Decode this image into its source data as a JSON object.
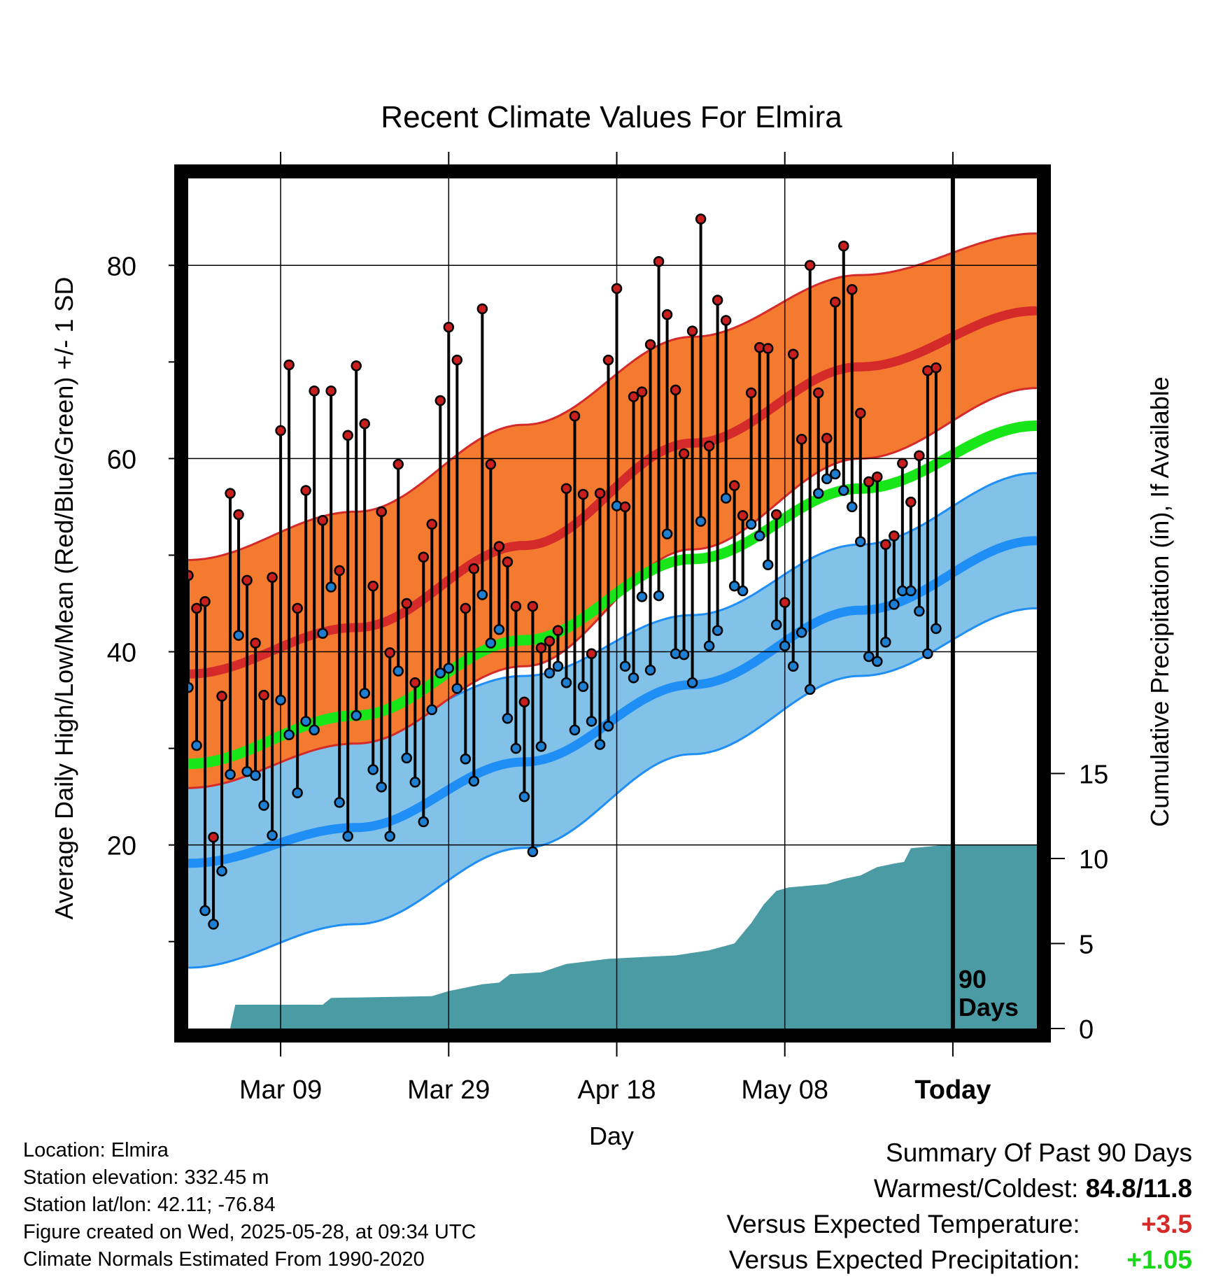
{
  "chart_data": {
    "type": "line",
    "title": "Recent Climate Values For Elmira",
    "xlabel": "Day",
    "ylabel": "Average Daily High/Low/Mean (Red/Blue/Green) +/- 1 SD",
    "y2label": "Cumulative Precipitation (in), If Available",
    "x_ticks": [
      "Mar 09",
      "Mar 29",
      "Apr 18",
      "May 08",
      "Today"
    ],
    "x_tick_days": [
      11,
      31,
      51,
      71,
      91
    ],
    "x_range_days": [
      0,
      101
    ],
    "y_ticks": [
      20,
      40,
      60,
      80
    ],
    "ylim": [
      1,
      89
    ],
    "y2_ticks": [
      0,
      5,
      10,
      15
    ],
    "y2lim": [
      0,
      50
    ],
    "today_day": 91,
    "today_label": "90 Days",
    "colors": {
      "high_band": "#f47a30",
      "high_mean": "#d42a2a",
      "low_band": "#82c1e8",
      "low_mean": "#1f8ef5",
      "mean_line": "#19e619",
      "precip": "#4a9ba4",
      "high_point": "#c81e1e",
      "low_point": "#1e7fd2"
    },
    "normal_high": {
      "days": [
        0,
        20,
        40,
        60,
        80,
        101
      ],
      "mean": [
        37.7,
        42.5,
        51.0,
        61.6,
        69.5,
        75.3
      ],
      "sd": [
        11.8,
        12.0,
        12.5,
        11.0,
        9.5,
        8.0
      ]
    },
    "normal_low": {
      "days": [
        0,
        20,
        40,
        60,
        80,
        101
      ],
      "mean": [
        18.1,
        21.8,
        28.6,
        36.6,
        44.3,
        51.5
      ],
      "sd": [
        10.8,
        10.0,
        8.9,
        7.2,
        6.8,
        7.0
      ]
    },
    "normal_mean": {
      "days": [
        0,
        20,
        40,
        60,
        80,
        101
      ],
      "values": [
        28.4,
        33.4,
        41.2,
        49.6,
        56.9,
        63.4
      ]
    },
    "observed": {
      "start_day": 0,
      "high": [
        47.9,
        44.5,
        45.2,
        20.8,
        35.4,
        56.4,
        54.2,
        47.4,
        40.9,
        35.5,
        47.7,
        62.9,
        69.7,
        44.5,
        56.7,
        67.0,
        53.6,
        67.0,
        48.4,
        62.4,
        69.6,
        63.6,
        46.8,
        54.5,
        39.9,
        59.4,
        45.0,
        36.8,
        49.8,
        53.2,
        66.0,
        73.6,
        70.2,
        44.5,
        48.6,
        75.5,
        59.4,
        50.9,
        49.3,
        44.7,
        34.8,
        44.7,
        40.4,
        41.1,
        42.2,
        56.9,
        64.4,
        56.3,
        39.8,
        56.4,
        70.2,
        77.6,
        55.0,
        66.4,
        66.9,
        71.8,
        80.4,
        74.9,
        67.1,
        60.5,
        73.2,
        84.8,
        61.3,
        76.4,
        74.3,
        57.2,
        54.1,
        66.8,
        71.5,
        71.4,
        54.2,
        45.1,
        70.8,
        62.0,
        80.0,
        66.8,
        62.1,
        76.2,
        82.0,
        77.5,
        64.7,
        57.6,
        58.1,
        51.1,
        52.0,
        59.5,
        55.5,
        60.3,
        69.1,
        69.4
      ],
      "low": [
        36.3,
        30.3,
        13.2,
        11.8,
        17.3,
        27.3,
        41.7,
        27.6,
        27.2,
        24.1,
        21.0,
        35.0,
        31.4,
        25.4,
        32.8,
        31.9,
        41.9,
        46.7,
        24.4,
        20.9,
        33.4,
        35.7,
        27.8,
        26.0,
        20.9,
        38.0,
        29.0,
        26.5,
        22.4,
        34.0,
        37.8,
        38.3,
        36.2,
        28.9,
        26.6,
        45.9,
        40.9,
        42.3,
        33.1,
        30.0,
        25.0,
        19.3,
        30.2,
        37.8,
        38.5,
        36.8,
        31.9,
        36.4,
        32.8,
        30.4,
        32.3,
        55.1,
        38.5,
        37.3,
        45.7,
        38.1,
        45.8,
        52.2,
        39.8,
        39.7,
        36.8,
        53.5,
        40.6,
        42.2,
        55.9,
        46.8,
        46.3,
        53.2,
        52.0,
        49.0,
        42.8,
        40.6,
        38.5,
        42.0,
        36.1,
        56.4,
        57.9,
        58.4,
        56.7,
        55.0,
        51.4,
        39.5,
        39.0,
        41.0,
        44.9,
        46.3,
        46.3,
        44.2,
        39.8,
        42.4
      ]
    },
    "precip_cumulative": {
      "days": [
        0,
        5,
        5.6,
        16,
        17,
        29,
        31,
        35,
        37,
        38.3,
        42,
        45,
        50,
        54,
        58,
        62,
        65,
        67,
        68.5,
        70,
        71.5,
        76,
        78,
        80,
        82,
        84,
        85.2,
        86,
        90,
        101
      ],
      "values": [
        0,
        0,
        1.4,
        1.4,
        1.8,
        1.9,
        2.2,
        2.6,
        2.7,
        3.2,
        3.3,
        3.8,
        4.1,
        4.2,
        4.3,
        4.6,
        5.0,
        6.2,
        7.3,
        8.1,
        8.3,
        8.5,
        8.8,
        9.0,
        9.5,
        9.7,
        9.8,
        10.6,
        10.8,
        10.8
      ]
    }
  },
  "info": {
    "location": "Location: Elmira",
    "elevation": "Station elevation: 332.45 m",
    "latlon": "Station lat/lon: 42.11; -76.84",
    "created": "Figure created on Wed, 2025-05-28, at 09:34 UTC",
    "normals": "Climate Normals Estimated From 1990-2020"
  },
  "summary": {
    "title": "Summary Of Past 90 Days",
    "warm_cold_label": "Warmest/Coldest:",
    "warm_cold_value": "84.8/11.8",
    "temp_label": "Versus Expected Temperature:",
    "temp_value": "+3.5",
    "temp_color": "#d42a2a",
    "precip_label": "Versus Expected Precipitation:",
    "precip_value": "+1.05",
    "precip_color": "#19d619"
  }
}
